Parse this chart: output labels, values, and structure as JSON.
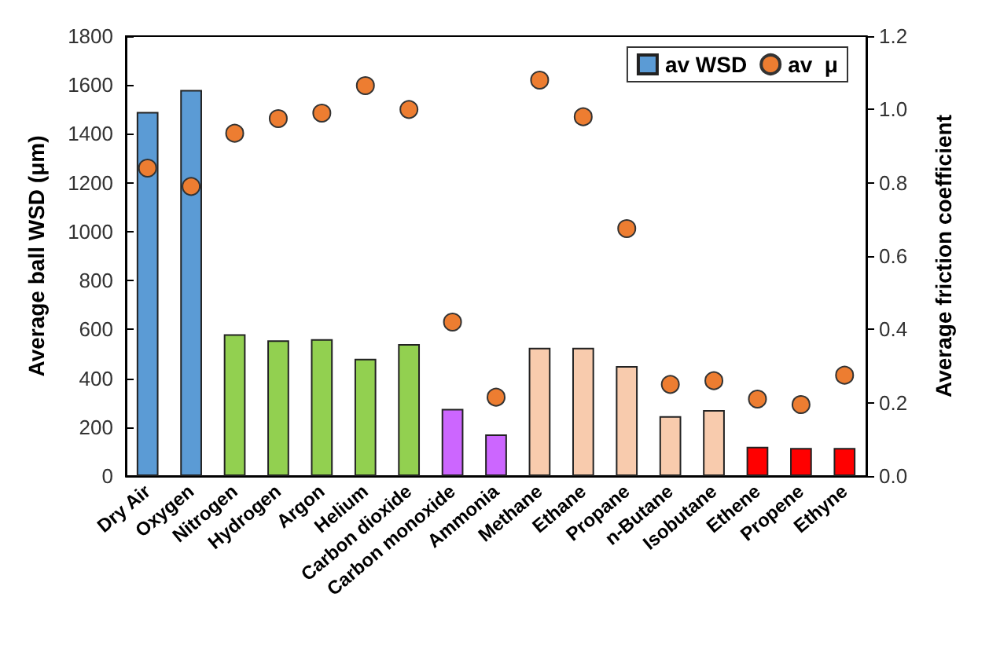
{
  "chart_data": {
    "type": "bar",
    "ylabel": "Average ball WSD (μm)",
    "y2label": "Average friction coefficient",
    "categories": [
      "Dry Air",
      "Oxygen",
      "Nitrogen",
      "Hydrogen",
      "Argon",
      "Helium",
      "Carbon dioxide",
      "Carbon monoxide",
      "Ammonia",
      "Methane",
      "Ethane",
      "Propane",
      "n-Butane",
      "Isobutane",
      "Ethene",
      "Propene",
      "Ethyne"
    ],
    "series": [
      {
        "name": "av WSD",
        "color": "#5b9bd5",
        "colors": [
          "#5b9bd5",
          "#5b9bd5",
          "#92d050",
          "#92d050",
          "#92d050",
          "#92d050",
          "#92d050",
          "#cc66ff",
          "#cc66ff",
          "#f8cbad",
          "#f8cbad",
          "#f8cbad",
          "#f8cbad",
          "#f8cbad",
          "#ff0000",
          "#ff0000",
          "#ff0000"
        ],
        "values": [
          1490,
          1580,
          580,
          555,
          560,
          480,
          540,
          275,
          170,
          525,
          525,
          450,
          245,
          270,
          120,
          115,
          115
        ]
      },
      {
        "name": "av  μ",
        "type": "scatter",
        "axis": "y2",
        "color": "#ed7d31",
        "values": [
          0.84,
          0.79,
          0.935,
          0.975,
          0.99,
          1.065,
          1.0,
          0.42,
          0.215,
          1.08,
          0.98,
          0.675,
          0.25,
          0.26,
          0.21,
          0.195,
          0.275
        ]
      }
    ],
    "ylim": [
      0,
      1800
    ],
    "yticks": [
      0,
      200,
      400,
      600,
      800,
      1000,
      1200,
      1400,
      1600,
      1800
    ],
    "y2lim": [
      0,
      1.2
    ],
    "y2ticks": [
      {
        "value": 0,
        "label": "0.0"
      },
      {
        "value": 0.2,
        "label": "0.2"
      },
      {
        "value": 0.4,
        "label": "0.4"
      },
      {
        "value": 0.6,
        "label": "0.6"
      },
      {
        "value": 0.8,
        "label": "0.8"
      },
      {
        "value": 1,
        "label": "1.0"
      },
      {
        "value": 1.2,
        "label": "1.2"
      }
    ],
    "legend": "top right",
    "marker": "circle",
    "grid": false
  }
}
